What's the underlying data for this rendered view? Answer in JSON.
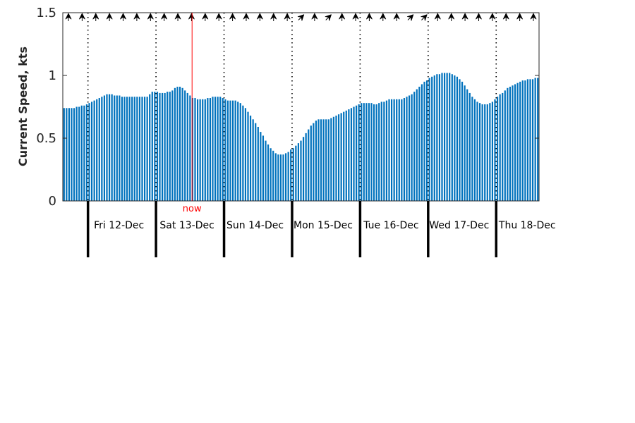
{
  "chart_data": {
    "type": "bar",
    "ylabel": "Current Speed, kts",
    "ylim": [
      0,
      1.5
    ],
    "yticks": [
      0,
      0.5,
      1,
      1.5
    ],
    "ytick_labels": [
      "0",
      "0.5",
      "1",
      "1.5"
    ],
    "now_label": "now",
    "now_position_days": 1.9,
    "x_range_days": [
      0,
      7
    ],
    "day_labels": [
      "Fri 12-Dec",
      "Sat 13-Dec",
      "Sun 14-Dec",
      "Mon 15-Dec",
      "Tue 16-Dec",
      "Wed 17-Dec",
      "Thu 18-Dec"
    ],
    "day_boundaries_days": [
      0.37,
      1.37,
      2.37,
      3.37,
      4.37,
      5.37,
      6.37
    ],
    "bars_per_day": 24,
    "values": [
      0.74,
      0.74,
      0.74,
      0.74,
      0.74,
      0.75,
      0.75,
      0.76,
      0.76,
      0.77,
      0.78,
      0.79,
      0.8,
      0.81,
      0.82,
      0.83,
      0.84,
      0.85,
      0.85,
      0.85,
      0.84,
      0.84,
      0.84,
      0.83,
      0.83,
      0.83,
      0.83,
      0.83,
      0.83,
      0.83,
      0.83,
      0.83,
      0.83,
      0.83,
      0.85,
      0.87,
      0.87,
      0.87,
      0.86,
      0.86,
      0.86,
      0.87,
      0.87,
      0.88,
      0.9,
      0.91,
      0.91,
      0.9,
      0.88,
      0.86,
      0.84,
      0.82,
      0.82,
      0.81,
      0.81,
      0.81,
      0.81,
      0.82,
      0.82,
      0.83,
      0.83,
      0.83,
      0.83,
      0.82,
      0.81,
      0.8,
      0.8,
      0.8,
      0.8,
      0.79,
      0.78,
      0.76,
      0.74,
      0.71,
      0.68,
      0.65,
      0.62,
      0.59,
      0.55,
      0.52,
      0.48,
      0.45,
      0.42,
      0.4,
      0.38,
      0.37,
      0.37,
      0.37,
      0.38,
      0.39,
      0.41,
      0.42,
      0.44,
      0.46,
      0.48,
      0.51,
      0.54,
      0.57,
      0.6,
      0.62,
      0.64,
      0.65,
      0.65,
      0.65,
      0.65,
      0.65,
      0.66,
      0.67,
      0.68,
      0.69,
      0.7,
      0.71,
      0.72,
      0.73,
      0.74,
      0.75,
      0.76,
      0.77,
      0.78,
      0.78,
      0.78,
      0.78,
      0.78,
      0.77,
      0.77,
      0.78,
      0.79,
      0.79,
      0.8,
      0.81,
      0.81,
      0.81,
      0.81,
      0.81,
      0.81,
      0.82,
      0.83,
      0.84,
      0.85,
      0.87,
      0.89,
      0.91,
      0.93,
      0.95,
      0.96,
      0.98,
      0.99,
      1.0,
      1.01,
      1.01,
      1.02,
      1.02,
      1.02,
      1.02,
      1.01,
      1.0,
      0.99,
      0.97,
      0.95,
      0.92,
      0.89,
      0.86,
      0.83,
      0.81,
      0.79,
      0.78,
      0.77,
      0.77,
      0.77,
      0.78,
      0.79,
      0.81,
      0.83,
      0.85,
      0.86,
      0.88,
      0.9,
      0.91,
      0.92,
      0.93,
      0.94,
      0.95,
      0.96,
      0.96,
      0.97,
      0.97,
      0.97,
      0.98,
      0.98
    ],
    "bar_color": "#0072BD",
    "now_color": "#FF0000",
    "direction_arrows": true,
    "direction_arrow_angles_deg": [
      0,
      0,
      0,
      0,
      0,
      0,
      0,
      0,
      0,
      0,
      0,
      0,
      0,
      0,
      0,
      0,
      0,
      45,
      0,
      45,
      0,
      0,
      0,
      0,
      0,
      45,
      45,
      0,
      0,
      0,
      0,
      0,
      0,
      0,
      0
    ]
  }
}
